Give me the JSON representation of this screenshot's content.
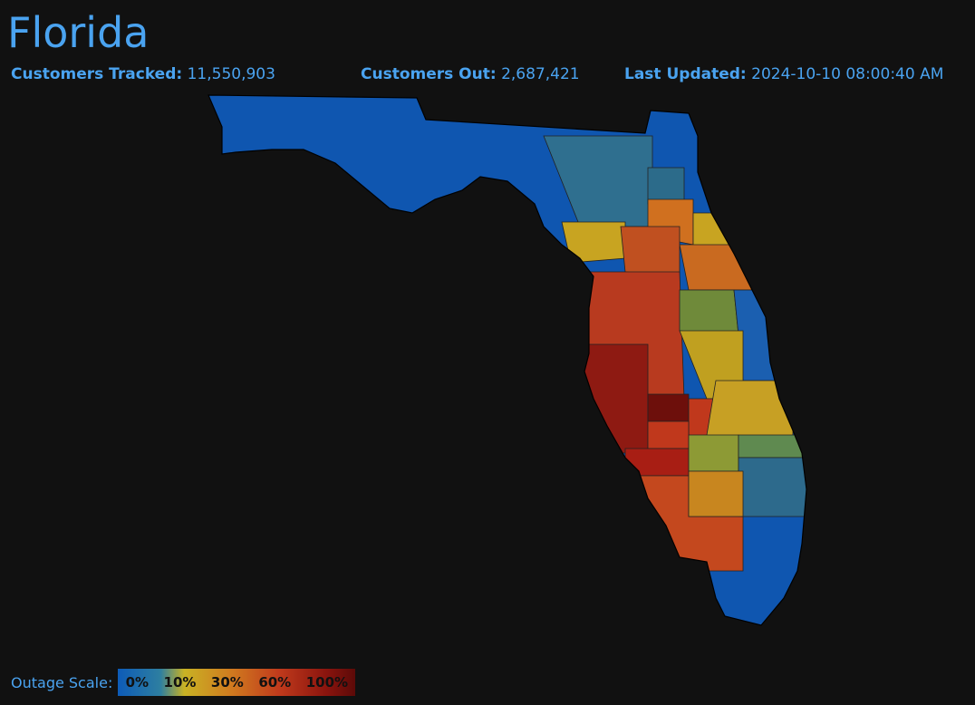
{
  "header": {
    "title": "Florida",
    "stats": [
      {
        "label": "Customers Tracked:",
        "value": "11,550,903"
      },
      {
        "label": "Customers Out:",
        "value": "2,687,421"
      },
      {
        "label": "Last Updated:",
        "value": "2024-10-10 08:00:40 AM"
      }
    ]
  },
  "legend": {
    "title": "Outage Scale:",
    "labels": [
      "0%",
      "10%",
      "30%",
      "60%",
      "100%"
    ]
  }
}
